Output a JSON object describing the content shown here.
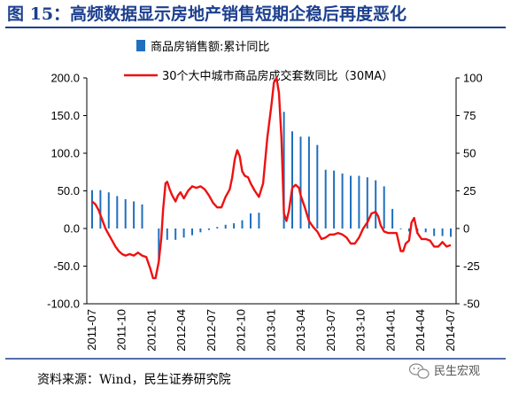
{
  "header": {
    "title": "图 15：高频数据显示房地产销售短期企稳后再度恶化"
  },
  "source": "资料来源：Wind，民生证券研究院",
  "watermark": {
    "text": "民生宏观",
    "icon": "wechat-icon"
  },
  "colors": {
    "title": "#1c3f8f",
    "bar": "#1f6fbf",
    "line": "#ee1111",
    "rule": "#1c3f8f"
  },
  "chart_data": {
    "type": "bar+line",
    "x_tick_labels": [
      "2011-07",
      "2011-10",
      "2012-01",
      "2012-04",
      "2012-07",
      "2012-10",
      "2013-01",
      "2013-04",
      "2013-07",
      "2013-10",
      "2014-01",
      "2014-04",
      "2014-07"
    ],
    "left_axis": {
      "ticks": [
        "200.0",
        "150.0",
        "100.0",
        "50.0",
        "0.0",
        "-50.0",
        "-100.0"
      ],
      "range": [
        -100,
        200
      ]
    },
    "right_axis": {
      "ticks": [
        "100",
        "75",
        "50",
        "25",
        "0",
        "-25",
        "-50"
      ],
      "range": [
        -50,
        100
      ]
    },
    "legend": {
      "position": "top",
      "entries": [
        "商品房销售额:累计同比",
        "30个大中城市商品房成交套数同比（30MA）"
      ]
    },
    "bars": {
      "name": "商品房销售额:累计同比",
      "axis": "left",
      "points": [
        [
          0,
          51
        ],
        [
          1,
          51
        ],
        [
          2,
          48
        ],
        [
          3,
          43
        ],
        [
          4,
          39
        ],
        [
          5,
          36
        ],
        [
          6,
          32
        ],
        [
          8,
          -42
        ],
        [
          9,
          -15
        ],
        [
          10,
          -15
        ],
        [
          11,
          -12
        ],
        [
          12,
          -9
        ],
        [
          13,
          -5
        ],
        [
          14,
          -2
        ],
        [
          15,
          2
        ],
        [
          16,
          5
        ],
        [
          17,
          7
        ],
        [
          18,
          11
        ],
        [
          19,
          20
        ],
        [
          20,
          21
        ],
        [
          23,
          155
        ],
        [
          24,
          129
        ],
        [
          25,
          122
        ],
        [
          26,
          122
        ],
        [
          27,
          111
        ],
        [
          28,
          78
        ],
        [
          29,
          77
        ],
        [
          30,
          73
        ],
        [
          31,
          70
        ],
        [
          32,
          70
        ],
        [
          33,
          68
        ],
        [
          34,
          64
        ],
        [
          35,
          56
        ],
        [
          36,
          26
        ],
        [
          37,
          -1
        ],
        [
          38,
          -4
        ],
        [
          39,
          -7
        ],
        [
          40,
          -5
        ],
        [
          41,
          -10
        ],
        [
          42,
          -10
        ],
        [
          43,
          -11
        ]
      ]
    },
    "series": [
      {
        "name": "30个大中城市商品房成交套数同比（30MA）",
        "axis": "right",
        "points": [
          [
            0,
            18
          ],
          [
            0.4,
            16
          ],
          [
            0.8,
            12
          ],
          [
            1.2,
            6
          ],
          [
            1.6,
            0
          ],
          [
            2,
            -4
          ],
          [
            2.4,
            -8
          ],
          [
            2.8,
            -12
          ],
          [
            3.2,
            -15
          ],
          [
            3.6,
            -17
          ],
          [
            4,
            -18
          ],
          [
            4.5,
            -17
          ],
          [
            5,
            -18
          ],
          [
            5.5,
            -16
          ],
          [
            6,
            -18
          ],
          [
            6.5,
            -19
          ],
          [
            7,
            -27
          ],
          [
            7.3,
            -33
          ],
          [
            7.6,
            -33
          ],
          [
            8,
            -22
          ],
          [
            8.3,
            -6
          ],
          [
            8.5,
            12
          ],
          [
            8.8,
            30
          ],
          [
            9,
            31
          ],
          [
            9.3,
            26
          ],
          [
            9.6,
            22
          ],
          [
            10,
            18
          ],
          [
            10.3,
            22
          ],
          [
            10.6,
            24
          ],
          [
            11,
            20
          ],
          [
            11.5,
            25
          ],
          [
            12,
            28
          ],
          [
            12.5,
            27
          ],
          [
            13,
            28
          ],
          [
            13.5,
            26
          ],
          [
            14,
            22
          ],
          [
            14.5,
            17
          ],
          [
            15,
            14
          ],
          [
            15.5,
            14
          ],
          [
            16,
            21
          ],
          [
            16.5,
            26
          ],
          [
            16.8,
            34
          ],
          [
            17.1,
            46
          ],
          [
            17.4,
            52
          ],
          [
            17.7,
            48
          ],
          [
            18,
            38
          ],
          [
            18.3,
            35
          ],
          [
            18.7,
            34
          ],
          [
            19,
            30
          ],
          [
            19.5,
            25
          ],
          [
            20,
            21
          ],
          [
            20.5,
            30
          ],
          [
            21,
            60
          ],
          [
            21.5,
            82
          ],
          [
            21.8,
            97
          ],
          [
            22.1,
            100
          ],
          [
            22.4,
            90
          ],
          [
            22.7,
            60
          ],
          [
            23,
            10
          ],
          [
            23.3,
            5
          ],
          [
            23.6,
            12
          ],
          [
            24,
            27
          ],
          [
            24.4,
            29
          ],
          [
            24.8,
            27
          ],
          [
            25,
            22
          ],
          [
            25.5,
            14
          ],
          [
            26,
            5
          ],
          [
            26.5,
            1
          ],
          [
            27,
            -2
          ],
          [
            27.5,
            -7
          ],
          [
            28,
            -6
          ],
          [
            28.5,
            -4
          ],
          [
            29,
            -4
          ],
          [
            29.5,
            -3
          ],
          [
            30,
            -4
          ],
          [
            30.5,
            -6
          ],
          [
            31,
            -10
          ],
          [
            31.5,
            -10
          ],
          [
            32,
            -6
          ],
          [
            32.5,
            0
          ],
          [
            33,
            4
          ],
          [
            33.5,
            10
          ],
          [
            34,
            11
          ],
          [
            34.3,
            8
          ],
          [
            34.6,
            2
          ],
          [
            35,
            -2
          ],
          [
            35.5,
            -3
          ],
          [
            36,
            -3
          ],
          [
            36.5,
            -3
          ],
          [
            37,
            -15
          ],
          [
            37.3,
            -15
          ],
          [
            37.6,
            -10
          ],
          [
            38,
            -8
          ],
          [
            38.3,
            4
          ],
          [
            38.6,
            7
          ],
          [
            39,
            -3
          ],
          [
            39.5,
            -7
          ],
          [
            40,
            -7
          ],
          [
            40.5,
            -8
          ],
          [
            41,
            -12
          ],
          [
            41.5,
            -12
          ],
          [
            42,
            -9
          ],
          [
            42.5,
            -12
          ],
          [
            43,
            -11
          ]
        ]
      }
    ],
    "grid": false
  }
}
